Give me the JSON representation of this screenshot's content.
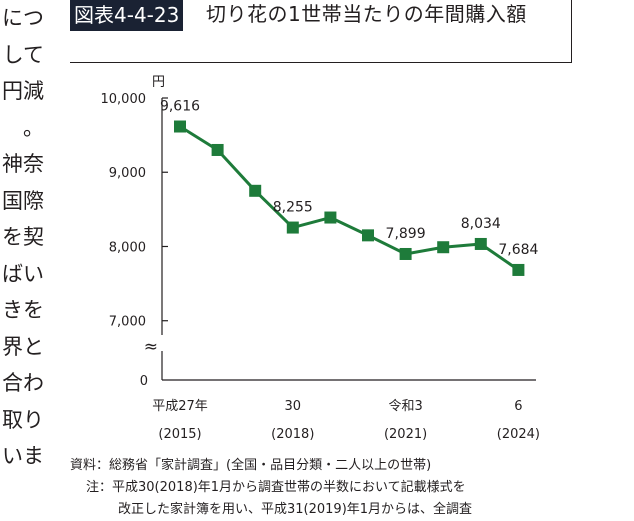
{
  "side_text": [
    "につ",
    "して",
    "円減",
    "。",
    "神奈",
    "国際",
    "を契",
    "ばい",
    "きを",
    "界と",
    "合わ",
    "取り",
    "いま"
  ],
  "figure": {
    "number": "図表4-4-23",
    "title": "切り花の1世帯当たりの年間購入額"
  },
  "chart_data": {
    "type": "line",
    "title": "切り花の1世帯当たりの年間購入額",
    "unit": "円",
    "x": [
      "2015",
      "2016",
      "2017",
      "2018",
      "2019",
      "2020",
      "2021",
      "2022",
      "2023",
      "2024"
    ],
    "series": [
      {
        "values": [
          9616,
          9300,
          8750,
          8255,
          8390,
          8150,
          7899,
          7990,
          8034,
          7684
        ],
        "color": "#1e7b3a"
      }
    ],
    "data_labels": [
      {
        "index": 0,
        "text": "9,616"
      },
      {
        "index": 3,
        "text": "8,255"
      },
      {
        "index": 6,
        "text": "7,899"
      },
      {
        "index": 8,
        "text": "8,034"
      },
      {
        "index": 9,
        "text": "7,684"
      }
    ],
    "y_ticks": [
      {
        "value": 7000,
        "label": "7,000"
      },
      {
        "value": 8000,
        "label": "8,000"
      },
      {
        "value": 9000,
        "label": "9,000"
      },
      {
        "value": 10000,
        "label": "10,000"
      }
    ],
    "ylim": [
      6700,
      10000
    ],
    "zero_label": "0",
    "axis_break": "≈",
    "x_tick_labels": [
      {
        "index": 0,
        "era": "平成27年",
        "year": "(2015)"
      },
      {
        "index": 3,
        "era": "30",
        "year": "(2018)"
      },
      {
        "index": 6,
        "era": "令和3",
        "year": "(2021)"
      },
      {
        "index": 9,
        "era": "6",
        "year": "(2024)"
      }
    ],
    "grid": false,
    "legend": "none"
  },
  "notes": {
    "source_label": "資料：",
    "source": "総務省「家計調査」(全国・品目分類・二人以上の世帯)",
    "note_label": "注：",
    "note_line1": "平成30(2018)年1月から調査世帯の半数において記載様式を",
    "note_line2": "改正した家計簿を用い、平成31(2019)年1月からは、全調査"
  }
}
